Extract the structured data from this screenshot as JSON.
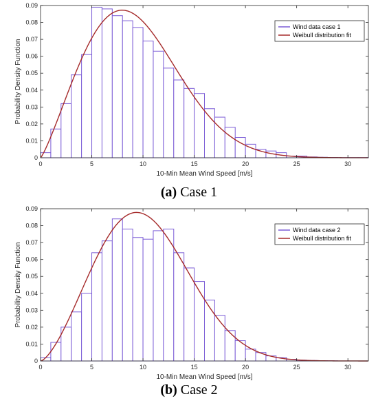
{
  "chart_data": [
    {
      "type": "bar",
      "subtype": "histogram-with-fit",
      "caption_letter": "(a)",
      "caption_text": "Case 1",
      "xlabel": "10-Min Mean Wind Speed [m/s]",
      "ylabel": "Probability Density Function",
      "xlim": [
        0,
        32
      ],
      "ylim": [
        0,
        0.09
      ],
      "xticks": [
        0,
        5,
        10,
        15,
        20,
        25,
        30
      ],
      "yticks": [
        0,
        0.01,
        0.02,
        0.03,
        0.04,
        0.05,
        0.06,
        0.07,
        0.08,
        0.09
      ],
      "ytick_labels": [
        "0",
        "0.01",
        "0.02",
        "0.03",
        "0.04",
        "0.05",
        "0.06",
        "0.07",
        "0.08",
        "0.09"
      ],
      "bin_width": 1,
      "bin_start": 0,
      "series": [
        {
          "name": "Wind data case 1",
          "kind": "histogram",
          "color": "#7b5cd6",
          "values": [
            0.003,
            0.017,
            0.032,
            0.049,
            0.061,
            0.089,
            0.088,
            0.084,
            0.081,
            0.077,
            0.069,
            0.063,
            0.053,
            0.046,
            0.041,
            0.038,
            0.029,
            0.024,
            0.018,
            0.012,
            0.008,
            0.005,
            0.004,
            0.003,
            0.001,
            0.001,
            0.0005,
            0.0003,
            0.0002,
            0.0001,
            0.0001,
            0.0001
          ]
        },
        {
          "name": "Weibull distribution fit",
          "kind": "line",
          "color": "#a52a2a",
          "k": 2.2,
          "c": 10.5
        }
      ],
      "legend_position": "top-right",
      "grid": false
    },
    {
      "type": "bar",
      "subtype": "histogram-with-fit",
      "caption_letter": "(b)",
      "caption_text": "Case 2",
      "xlabel": "10-Min Mean Wind Speed [m/s]",
      "ylabel": "Probability Density Function",
      "xlim": [
        0,
        32
      ],
      "ylim": [
        0,
        0.09
      ],
      "xticks": [
        0,
        5,
        10,
        15,
        20,
        25,
        30
      ],
      "yticks": [
        0,
        0.01,
        0.02,
        0.03,
        0.04,
        0.05,
        0.06,
        0.07,
        0.08,
        0.09
      ],
      "ytick_labels": [
        "0",
        "0.01",
        "0.02",
        "0.03",
        "0.04",
        "0.05",
        "0.06",
        "0.07",
        "0.08",
        "0.09"
      ],
      "bin_width": 1,
      "bin_start": 0,
      "series": [
        {
          "name": "Wind data case 2",
          "kind": "histogram",
          "color": "#7b5cd6",
          "values": [
            0.002,
            0.011,
            0.02,
            0.029,
            0.04,
            0.064,
            0.071,
            0.084,
            0.078,
            0.073,
            0.072,
            0.077,
            0.078,
            0.064,
            0.055,
            0.047,
            0.036,
            0.027,
            0.018,
            0.012,
            0.007,
            0.005,
            0.003,
            0.002,
            0.001,
            0.0005,
            0.0003,
            0.0002,
            0.0001
          ]
        },
        {
          "name": "Weibull distribution fit",
          "kind": "line",
          "color": "#a52a2a",
          "k": 2.5,
          "c": 11.5
        }
      ],
      "legend_position": "top-right",
      "grid": false
    }
  ]
}
